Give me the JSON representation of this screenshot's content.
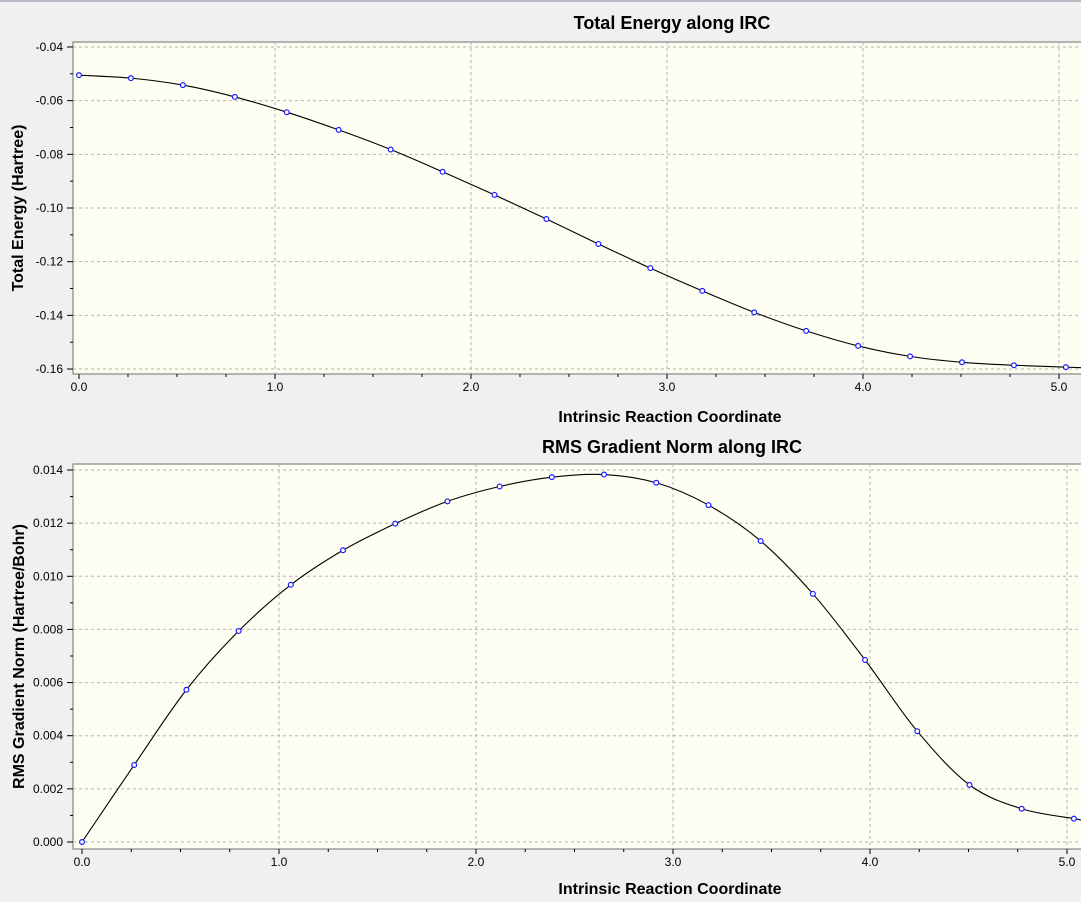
{
  "chart_data": [
    {
      "type": "line",
      "title": "Total Energy along IRC",
      "xlabel": "Intrinsic Reaction Coordinate",
      "ylabel": "Total Energy (Hartree)",
      "xlim": [
        0.0,
        5.07
      ],
      "ylim": [
        -0.1605,
        -0.0395
      ],
      "xticks": [
        0.0,
        1.0,
        2.0,
        3.0,
        4.0,
        5.0
      ],
      "xtick_labels": [
        "0.0",
        "1.0",
        "2.0",
        "3.0",
        "4.0",
        "5.0"
      ],
      "yticks": [
        -0.04,
        -0.06,
        -0.08,
        -0.1,
        -0.12,
        -0.14,
        -0.16
      ],
      "ytick_labels": [
        "-0.04",
        "-0.06",
        "-0.08",
        "-0.10",
        "-0.12",
        "-0.14",
        "-0.16"
      ],
      "grid": true,
      "series": [
        {
          "x": [
            0.0,
            0.265,
            0.53,
            0.795,
            1.06,
            1.325,
            1.59,
            1.855,
            2.12,
            2.385,
            2.65,
            2.915,
            3.18,
            3.445,
            3.71,
            3.975,
            4.24,
            4.505,
            4.77,
            5.035
          ],
          "y": [
            -0.0505,
            -0.0516,
            -0.0542,
            -0.0586,
            -0.0643,
            -0.0709,
            -0.0782,
            -0.0865,
            -0.0951,
            -0.1041,
            -0.1134,
            -0.1224,
            -0.1309,
            -0.1389,
            -0.1458,
            -0.1514,
            -0.1553,
            -0.1575,
            -0.1586,
            -0.1593
          ]
        }
      ]
    },
    {
      "type": "line",
      "title": "RMS Gradient Norm along IRC",
      "xlabel": "Intrinsic Reaction Coordinate",
      "ylabel": "RMS Gradient Norm (Hartree/Bohr)",
      "xlim": [
        0.0,
        5.05
      ],
      "ylim": [
        -0.0003,
        0.014
      ],
      "xticks": [
        0.0,
        1.0,
        2.0,
        3.0,
        4.0,
        5.0
      ],
      "xtick_labels": [
        "0.0",
        "1.0",
        "2.0",
        "3.0",
        "4.0",
        "5.0"
      ],
      "yticks": [
        0.0,
        0.002,
        0.004,
        0.006,
        0.008,
        0.01,
        0.012,
        0.014
      ],
      "ytick_labels": [
        "0.000",
        "0.002",
        "0.004",
        "0.006",
        "0.008",
        "0.010",
        "0.012",
        "0.014"
      ],
      "grid": true,
      "series": [
        {
          "x": [
            0.0,
            0.265,
            0.53,
            0.795,
            1.06,
            1.325,
            1.59,
            1.855,
            2.12,
            2.385,
            2.65,
            2.915,
            3.18,
            3.445,
            3.71,
            3.975,
            4.24,
            4.505,
            4.77,
            5.035
          ],
          "y": [
            0.0,
            0.0029,
            0.00573,
            0.00794,
            0.00968,
            0.01098,
            0.01198,
            0.01282,
            0.01338,
            0.01373,
            0.01383,
            0.01352,
            0.01268,
            0.01133,
            0.00934,
            0.00685,
            0.00417,
            0.00215,
            0.00125,
            0.00088
          ]
        }
      ]
    }
  ],
  "colors": {
    "plot_background": "#fdfdf2",
    "marker": "#1a1aff",
    "line": "#000000",
    "grid": "#b4b4b4"
  }
}
